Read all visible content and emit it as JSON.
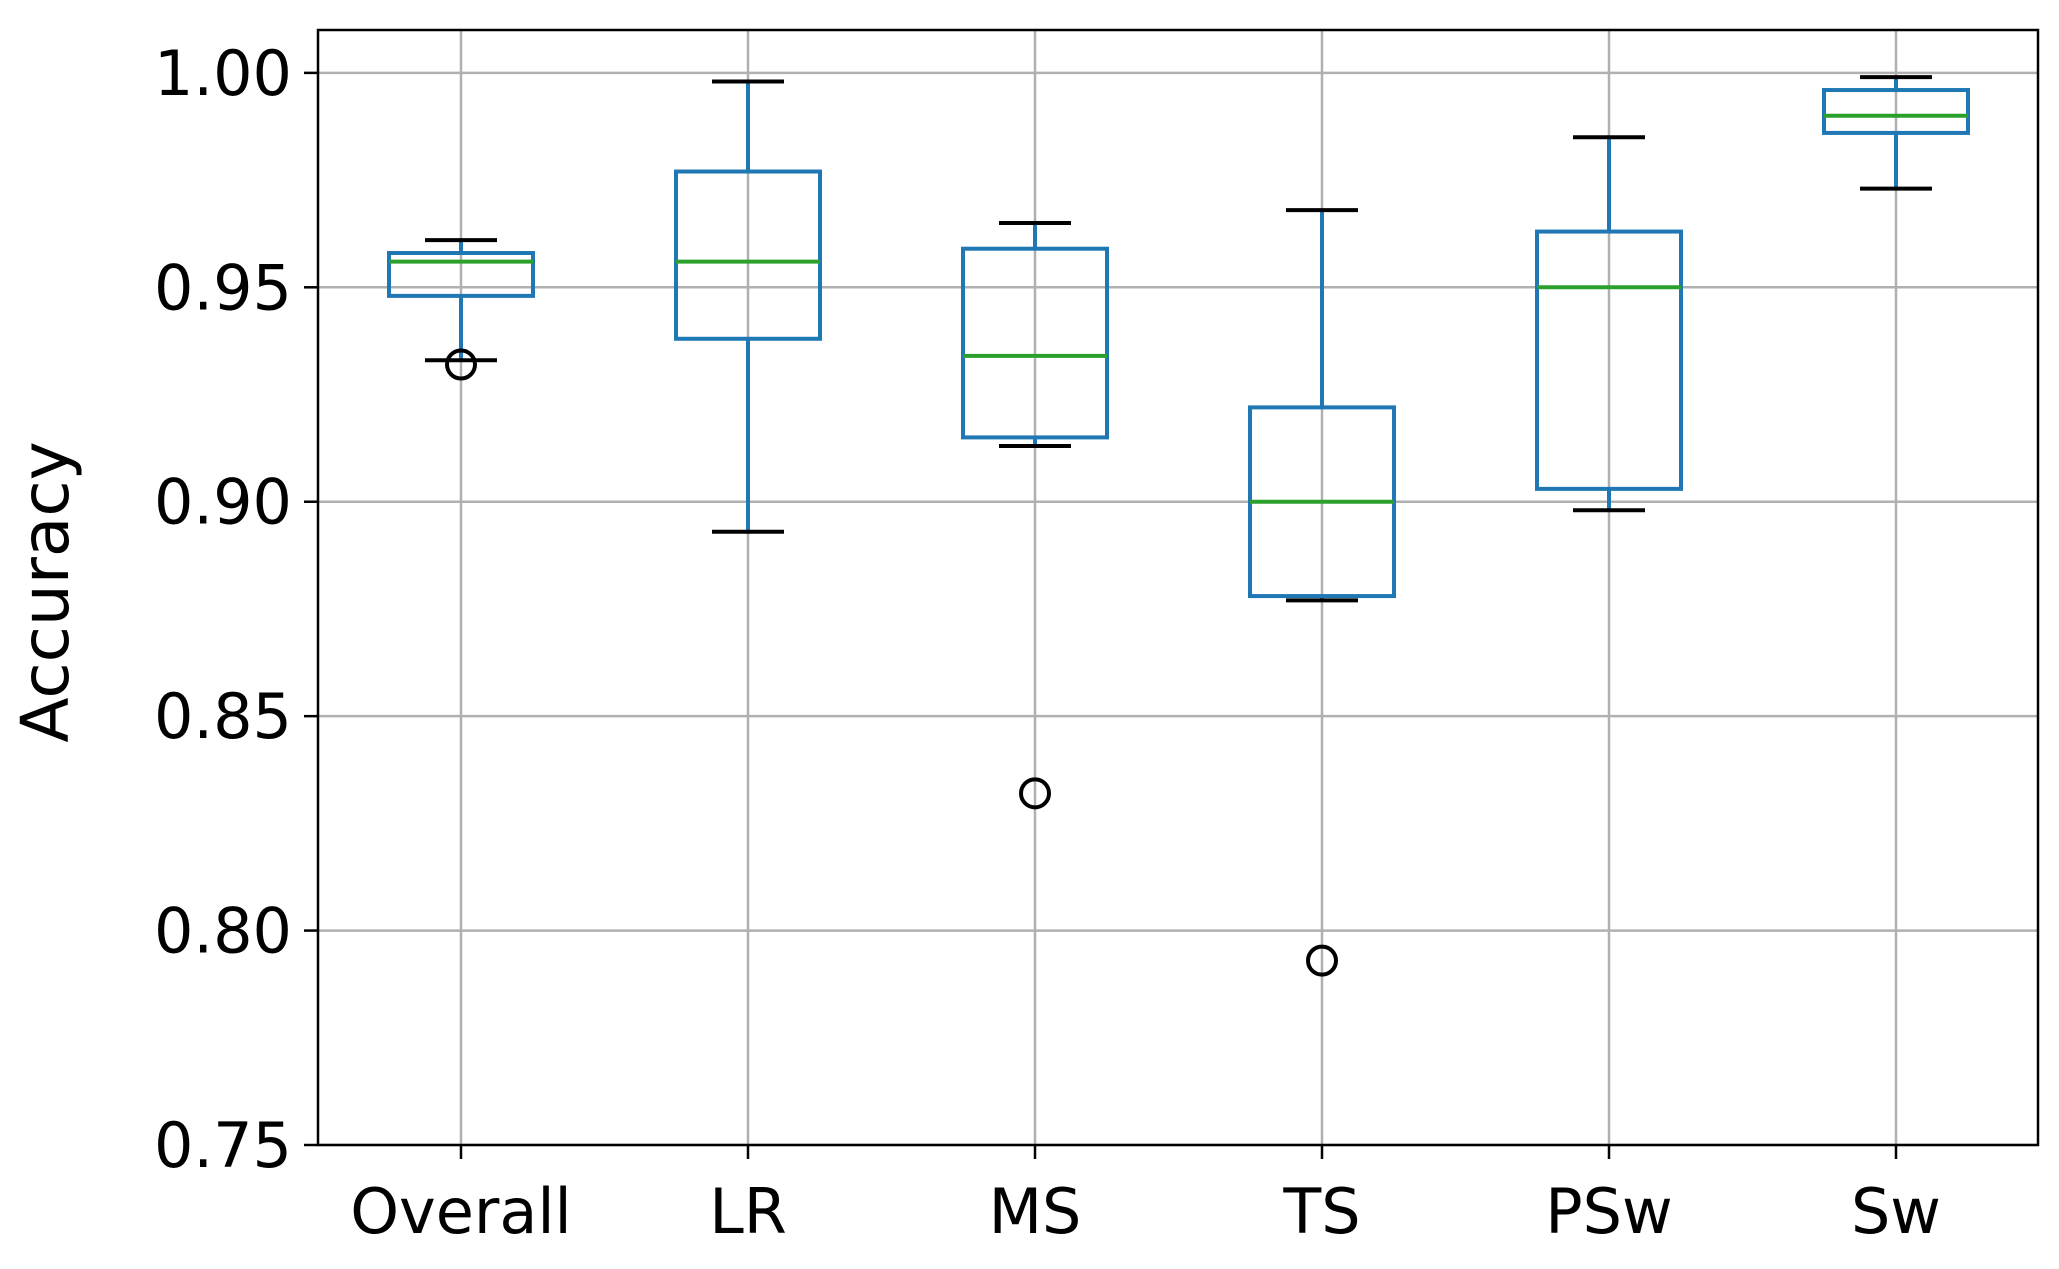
{
  "chart_data": {
    "type": "box",
    "title": "",
    "xlabel": "",
    "ylabel": "Accuracy",
    "ylim": [
      0.75,
      1.01
    ],
    "yticks": [
      0.75,
      0.8,
      0.85,
      0.9,
      0.95,
      1.0
    ],
    "ytick_labels": [
      "0.75",
      "0.80",
      "0.85",
      "0.90",
      "0.95",
      "1.00"
    ],
    "grid": true,
    "categories": [
      "Overall",
      "LR",
      "MS",
      "TS",
      "PSw",
      "Sw"
    ],
    "boxes": [
      {
        "name": "Overall",
        "whislo": 0.933,
        "q1": 0.948,
        "med": 0.956,
        "q3": 0.958,
        "whishi": 0.961,
        "fliers": [
          0.932
        ]
      },
      {
        "name": "LR",
        "whislo": 0.893,
        "q1": 0.938,
        "med": 0.956,
        "q3": 0.977,
        "whishi": 0.998,
        "fliers": []
      },
      {
        "name": "MS",
        "whislo": 0.913,
        "q1": 0.915,
        "med": 0.934,
        "q3": 0.959,
        "whishi": 0.965,
        "fliers": [
          0.832
        ]
      },
      {
        "name": "TS",
        "whislo": 0.877,
        "q1": 0.878,
        "med": 0.9,
        "q3": 0.922,
        "whishi": 0.968,
        "fliers": [
          0.793
        ]
      },
      {
        "name": "PSw",
        "whislo": 0.898,
        "q1": 0.903,
        "med": 0.95,
        "q3": 0.963,
        "whishi": 0.985,
        "fliers": []
      },
      {
        "name": "Sw",
        "whislo": 0.973,
        "q1": 0.986,
        "med": 0.99,
        "q3": 0.996,
        "whishi": 0.999,
        "fliers": []
      }
    ],
    "colors": {
      "box": "#1f77b4",
      "median": "#2ca02c",
      "whisker_cap": "#000000",
      "flier": "#000000",
      "grid": "#b0b0b0",
      "axis": "#000000"
    }
  }
}
